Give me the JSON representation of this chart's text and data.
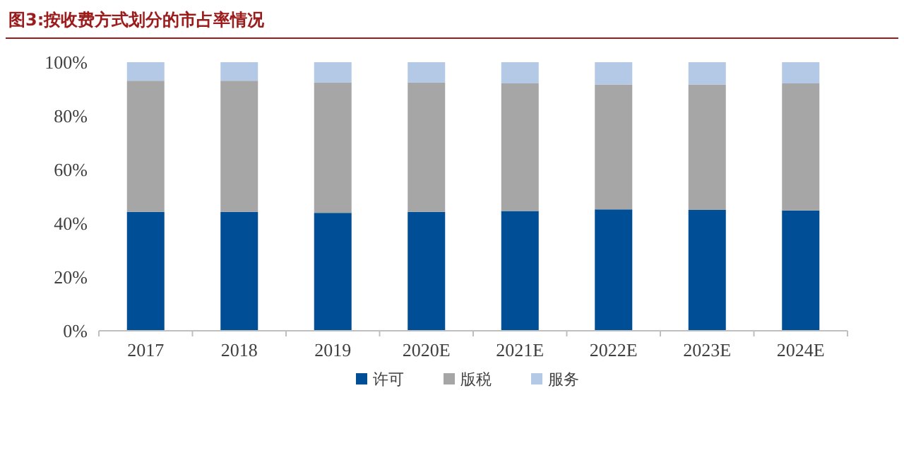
{
  "chart_data": {
    "type": "bar",
    "title": "图3:按收费方式划分的市占率情况",
    "categories": [
      "2017",
      "2018",
      "2019",
      "2020E",
      "2021E",
      "2022E",
      "2023E",
      "2024E"
    ],
    "stacked": true,
    "series": [
      {
        "name": "许可",
        "color": "#004e96",
        "values": [
          44.3,
          44.3,
          43.9,
          44.3,
          44.6,
          45.2,
          45.0,
          44.8
        ]
      },
      {
        "name": "版税",
        "color": "#a6a6a6",
        "values": [
          48.8,
          48.8,
          48.5,
          48.1,
          47.5,
          46.5,
          46.7,
          47.3
        ]
      },
      {
        "name": "服务",
        "color": "#b4c9e6",
        "values": [
          6.9,
          6.9,
          7.6,
          7.6,
          7.9,
          8.3,
          8.3,
          7.9
        ]
      }
    ],
    "ylim": [
      0,
      100
    ],
    "yticks": [
      {
        "value": 0,
        "label": "0%"
      },
      {
        "value": 20,
        "label": "20%"
      },
      {
        "value": 40,
        "label": "40%"
      },
      {
        "value": 60,
        "label": "60%"
      },
      {
        "value": 80,
        "label": "80%"
      },
      {
        "value": 100,
        "label": "100%"
      }
    ],
    "grid": false,
    "legend": "bottom"
  }
}
